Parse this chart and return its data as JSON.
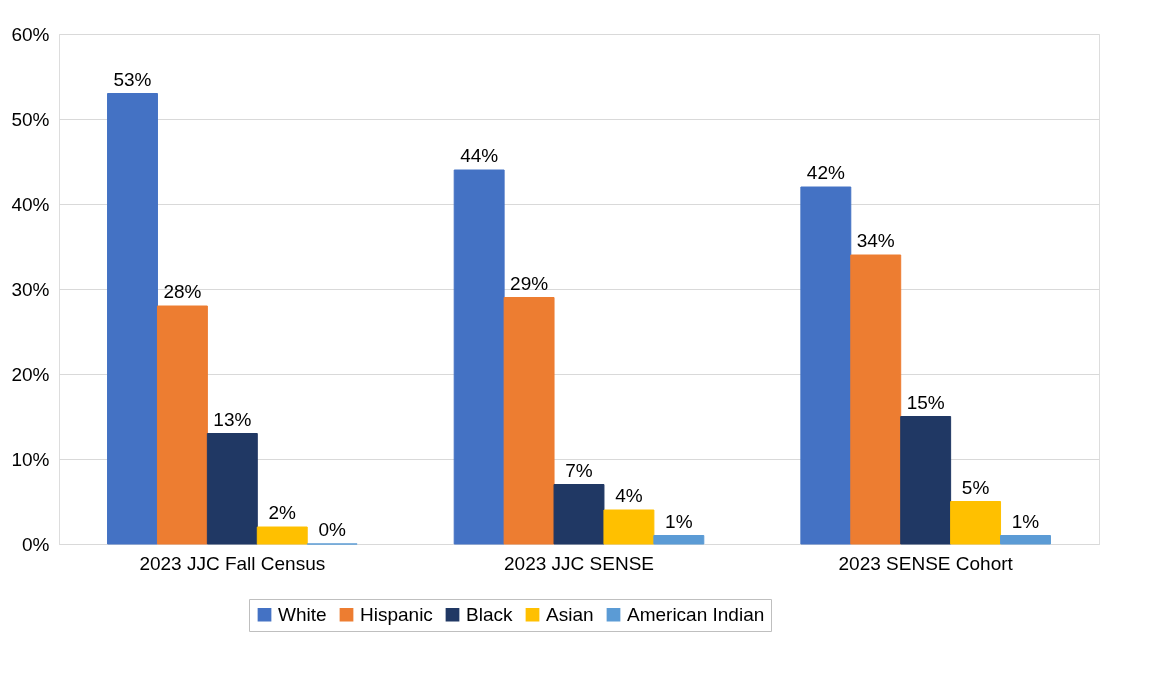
{
  "chart_data": {
    "type": "bar",
    "categories": [
      "2023 JJC Fall Census",
      "2023 JJC SENSE",
      "2023 SENSE Cohort"
    ],
    "series": [
      {
        "name": "White",
        "color": "#4472c4",
        "values": [
          53,
          44,
          42
        ],
        "value_labels": [
          "53%",
          "44%",
          "42%"
        ]
      },
      {
        "name": "Hispanic",
        "color": "#ed7d31",
        "values": [
          28,
          29,
          34
        ],
        "value_labels": [
          "28%",
          "29%",
          "34%"
        ]
      },
      {
        "name": "Black",
        "color": "#203864",
        "values": [
          13,
          7,
          15
        ],
        "value_labels": [
          "13%",
          "7%",
          "15%"
        ]
      },
      {
        "name": "Asian",
        "color": "#ffc000",
        "values": [
          2,
          4,
          5
        ],
        "value_labels": [
          "2%",
          "4%",
          "5%"
        ]
      },
      {
        "name": "American Indian",
        "color": "#5b9bd5",
        "values": [
          0,
          1,
          1
        ],
        "value_labels": [
          "0%",
          "1%",
          "1%"
        ]
      }
    ],
    "ylim": [
      0,
      60
    ],
    "yticks": [
      {
        "value": 0,
        "label": "0%"
      },
      {
        "value": 10,
        "label": "10%"
      },
      {
        "value": 20,
        "label": "20%"
      },
      {
        "value": 30,
        "label": "30%"
      },
      {
        "value": 40,
        "label": "40%"
      },
      {
        "value": 50,
        "label": "50%"
      },
      {
        "value": 60,
        "label": "60%"
      }
    ],
    "grid": "y",
    "legend": "bottom"
  }
}
